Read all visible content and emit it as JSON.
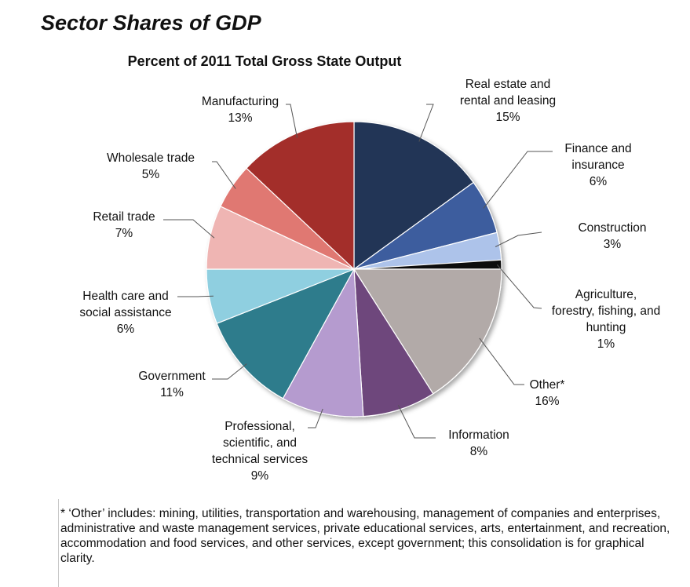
{
  "page": {
    "title": "Sector Shares of GDP",
    "footnote": "* ‘Other’ includes: mining, utilities, transportation and warehousing, management of companies and enterprises, administrative and waste management services, private educational services, arts, entertainment, and recreation, accommodation and food services, and other services, except government; this consolidation is for graphical clarity."
  },
  "chart_data": {
    "type": "pie",
    "title": "Percent of 2011 Total Gross State Output",
    "start": "12 o'clock",
    "direction": "clockwise",
    "slices": [
      {
        "name": "Real estate and rental and leasing",
        "label_lines": [
          "Real estate and",
          "rental and leasing"
        ],
        "value": 15,
        "display": "15%",
        "color": "#223557"
      },
      {
        "name": "Finance and insurance",
        "label_lines": [
          "Finance and",
          "insurance"
        ],
        "value": 6,
        "display": "6%",
        "color": "#3d5d9e"
      },
      {
        "name": "Construction",
        "label_lines": [
          "Construction"
        ],
        "value": 3,
        "display": "3%",
        "color": "#adc3ea"
      },
      {
        "name": "Agriculture, forestry, fishing, and hunting",
        "label_lines": [
          "Agriculture,",
          "forestry, fishing, and",
          "hunting"
        ],
        "value": 1,
        "display": "1%",
        "color": "#111111"
      },
      {
        "name": "Other*",
        "label_lines": [
          "Other*"
        ],
        "value": 16,
        "display": "16%",
        "color": "#b2aaa8"
      },
      {
        "name": "Information",
        "label_lines": [
          "Information"
        ],
        "value": 8,
        "display": "8%",
        "color": "#6e477c"
      },
      {
        "name": "Professional, scientific, and technical services",
        "label_lines": [
          "Professional,",
          "scientific, and",
          "technical services"
        ],
        "value": 9,
        "display": "9%",
        "color": "#b59bcf"
      },
      {
        "name": "Government",
        "label_lines": [
          "Government"
        ],
        "value": 11,
        "display": "11%",
        "color": "#2f7b8c"
      },
      {
        "name": "Health care and social assistance",
        "label_lines": [
          "Health care and",
          "social assistance"
        ],
        "value": 6,
        "display": "6%",
        "color": "#8fcfe0"
      },
      {
        "name": "Retail trade",
        "label_lines": [
          "Retail trade"
        ],
        "value": 7,
        "display": "7%",
        "color": "#efb5b3"
      },
      {
        "name": "Wholesale trade",
        "label_lines": [
          "Wholesale trade"
        ],
        "value": 5,
        "display": "5%",
        "color": "#e07872"
      },
      {
        "name": "Manufacturing",
        "label_lines": [
          "Manufacturing"
        ],
        "value": 13,
        "display": "13%",
        "color": "#a32d2a"
      }
    ]
  }
}
